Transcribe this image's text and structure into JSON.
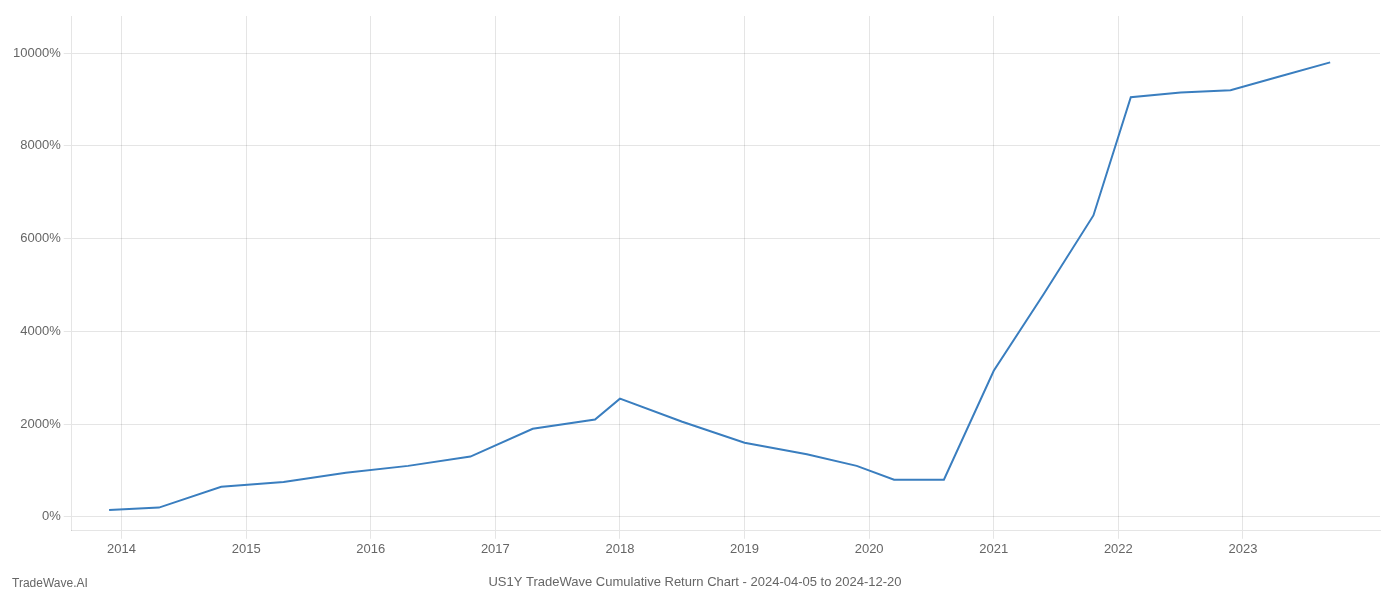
{
  "chart_data": {
    "type": "line",
    "title": "US1Y TradeWave Cumulative Return Chart - 2024-04-05 to 2024-12-20",
    "annotations": [
      "TradeWave.AI"
    ],
    "x": [
      2013.9,
      2014.3,
      2014.8,
      2015.3,
      2015.8,
      2016.3,
      2016.8,
      2017.3,
      2017.8,
      2018.0,
      2018.5,
      2019.0,
      2019.5,
      2019.9,
      2020.2,
      2020.6,
      2021.0,
      2021.4,
      2021.8,
      2022.1,
      2022.5,
      2022.9,
      2023.3,
      2023.7
    ],
    "values": [
      150,
      200,
      650,
      750,
      950,
      1100,
      1300,
      1900,
      2100,
      2550,
      2050,
      1600,
      1350,
      1100,
      800,
      800,
      3150,
      4800,
      6500,
      9050,
      9150,
      9200,
      9500,
      9800
    ],
    "color": "#3a7ebf",
    "xlim": [
      2013.6,
      2024.1
    ],
    "xticks": [
      2014,
      2015,
      2016,
      2017,
      2018,
      2019,
      2020,
      2021,
      2022,
      2023
    ],
    "ylim": [
      -300,
      10800
    ],
    "yticks": [
      {
        "value": 0,
        "label": "0%"
      },
      {
        "value": 2000,
        "label": "2000%"
      },
      {
        "value": 4000,
        "label": "4000%"
      },
      {
        "value": 6000,
        "label": "6000%"
      },
      {
        "value": 8000,
        "label": "8000%"
      },
      {
        "value": 10000,
        "label": "10000%"
      }
    ],
    "grid": true
  }
}
